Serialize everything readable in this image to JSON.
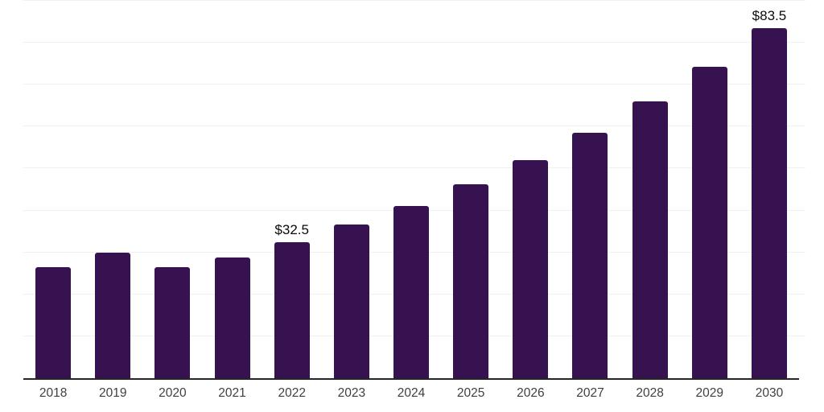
{
  "chart_data": {
    "type": "bar",
    "title": "",
    "xlabel": "",
    "ylabel": "",
    "categories": [
      "2018",
      "2019",
      "2020",
      "2021",
      "2022",
      "2023",
      "2024",
      "2025",
      "2026",
      "2027",
      "2028",
      "2029",
      "2030"
    ],
    "values": [
      26.5,
      29.9,
      26.4,
      28.8,
      32.5,
      36.6,
      41.1,
      46.3,
      52.1,
      58.6,
      66.0,
      74.2,
      83.5
    ],
    "data_labels": [
      "",
      "",
      "",
      "",
      "$32.5",
      "",
      "",
      "",
      "",
      "",
      "",
      "",
      "$83.5"
    ],
    "ylim": [
      0,
      90
    ],
    "gridline_step": 10,
    "grid": "horizontal",
    "legend": "none",
    "y_tick_labels_visible": false,
    "bar_color": "#361250"
  },
  "colors": {
    "bar": "#361250",
    "gridline": "#f0f0f0",
    "axis_line": "#262626",
    "tick_label": "#3f3f3f",
    "data_label": "#0a0a0a",
    "background": "#ffffff"
  }
}
